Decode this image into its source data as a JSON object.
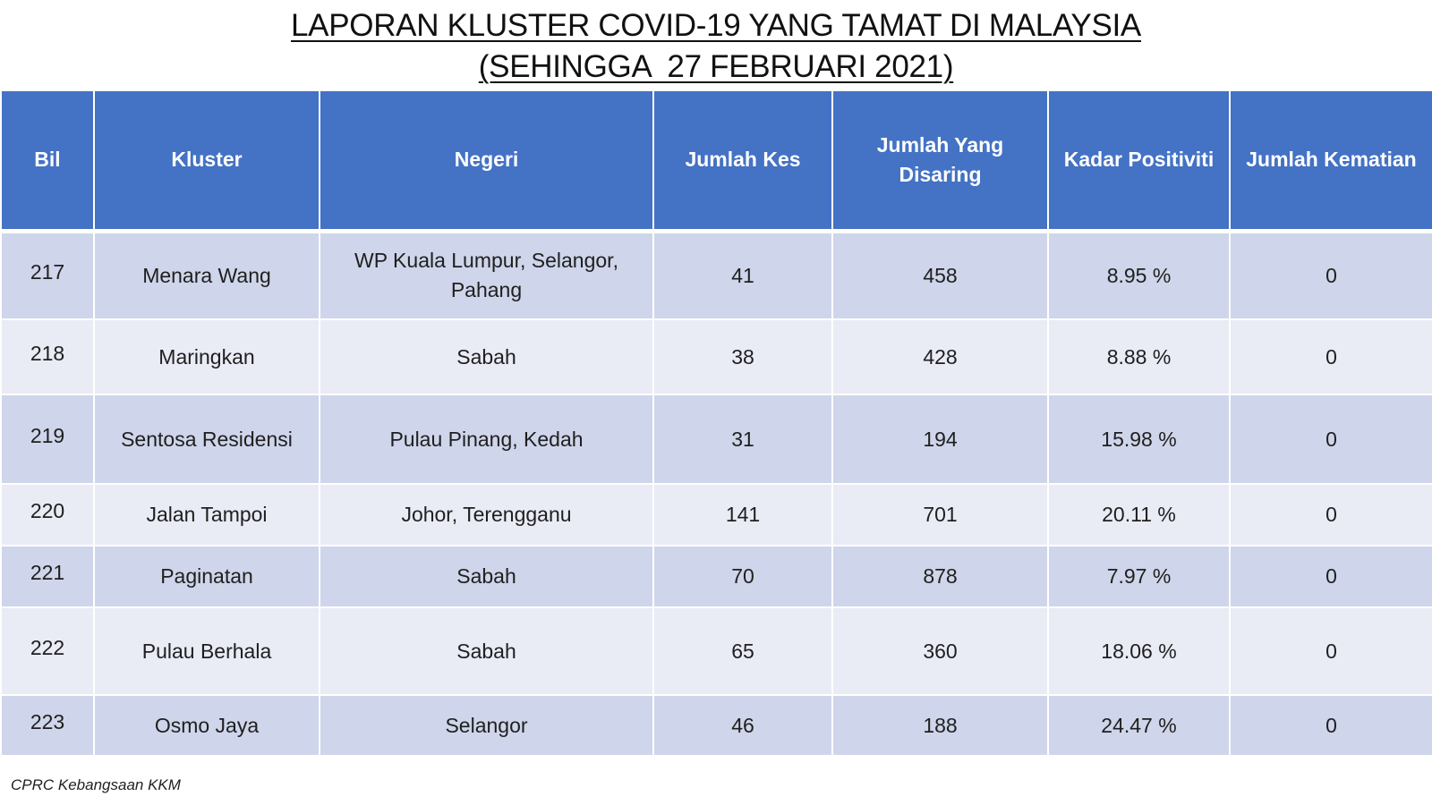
{
  "title": {
    "line1": "LAPORAN KLUSTER COVID-19 YANG TAMAT DI MALAYSIA",
    "line2": "(SEHINGGA  27 FEBRUARI 2021)"
  },
  "table": {
    "headers": {
      "bil": "Bil",
      "kluster": "Kluster",
      "negeri": "Negeri",
      "jumlah_kes": "Jumlah Kes",
      "jumlah_disaring": "Jumlah Yang Disaring",
      "kadar_positiviti": "Kadar Positiviti",
      "jumlah_kematian": "Jumlah Kematian"
    },
    "rows": [
      {
        "bil": "217",
        "kluster": "Menara Wang",
        "negeri": "WP Kuala Lumpur, Selangor, Pahang",
        "jumlah_kes": "41",
        "jumlah_disaring": "458",
        "kadar_positiviti": "8.95 %",
        "jumlah_kematian": "0"
      },
      {
        "bil": "218",
        "kluster": "Maringkan",
        "negeri": "Sabah",
        "jumlah_kes": "38",
        "jumlah_disaring": "428",
        "kadar_positiviti": "8.88 %",
        "jumlah_kematian": "0"
      },
      {
        "bil": "219",
        "kluster": "Sentosa Residensi",
        "negeri": "Pulau Pinang, Kedah",
        "jumlah_kes": "31",
        "jumlah_disaring": "194",
        "kadar_positiviti": "15.98 %",
        "jumlah_kematian": "0"
      },
      {
        "bil": "220",
        "kluster": "Jalan Tampoi",
        "negeri": "Johor, Terengganu",
        "jumlah_kes": "141",
        "jumlah_disaring": "701",
        "kadar_positiviti": "20.11 %",
        "jumlah_kematian": "0"
      },
      {
        "bil": "221",
        "kluster": "Paginatan",
        "negeri": "Sabah",
        "jumlah_kes": "70",
        "jumlah_disaring": "878",
        "kadar_positiviti": "7.97 %",
        "jumlah_kematian": "0"
      },
      {
        "bil": "222",
        "kluster": "Pulau Berhala",
        "negeri": "Sabah",
        "jumlah_kes": "65",
        "jumlah_disaring": "360",
        "kadar_positiviti": "18.06 %",
        "jumlah_kematian": "0"
      },
      {
        "bil": "223",
        "kluster": "Osmo Jaya",
        "negeri": "Selangor",
        "jumlah_kes": "46",
        "jumlah_disaring": "188",
        "kadar_positiviti": "24.47 %",
        "jumlah_kematian": "0"
      }
    ]
  },
  "footer": {
    "source": "CPRC Kebangsaan KKM"
  },
  "colors": {
    "header_bg": "#4472c4",
    "row_dark": "#cfd5ea",
    "row_light": "#e9ebf5"
  }
}
